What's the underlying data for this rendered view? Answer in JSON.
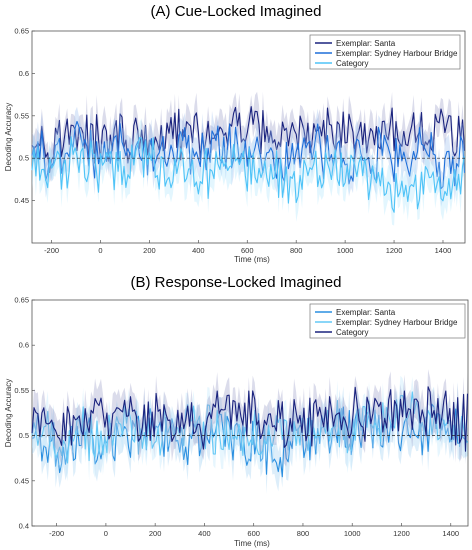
{
  "chart_data": [
    {
      "type": "line",
      "title": "(A) Cue-Locked Imagined",
      "xlabel": "Time (ms)",
      "ylabel": "Decoding Accuracy",
      "xlim": [
        -280,
        1490
      ],
      "ylim": [
        0.4,
        0.65
      ],
      "xticks": [
        -200,
        0,
        200,
        400,
        600,
        800,
        1000,
        1200,
        1400
      ],
      "yticks": [
        0.45,
        0.5,
        0.55,
        0.6,
        0.65
      ],
      "chance_level": 0.5,
      "legend_position": "top-right",
      "x": [
        -280,
        -200,
        -100,
        0,
        100,
        200,
        300,
        400,
        500,
        600,
        700,
        800,
        900,
        1000,
        1100,
        1200,
        1300,
        1400,
        1490
      ],
      "series": [
        {
          "name": "Exemplar: Santa",
          "color": "#1a237e",
          "values": [
            0.535,
            0.515,
            0.53,
            0.52,
            0.525,
            0.518,
            0.53,
            0.52,
            0.532,
            0.54,
            0.525,
            0.52,
            0.525,
            0.535,
            0.52,
            0.53,
            0.525,
            0.535,
            0.52
          ]
        },
        {
          "name": "Exemplar: Sydney Harbour Bridge",
          "color": "#1e6fd9",
          "values": [
            0.51,
            0.5,
            0.515,
            0.505,
            0.51,
            0.5,
            0.51,
            0.505,
            0.515,
            0.51,
            0.5,
            0.505,
            0.51,
            0.5,
            0.505,
            0.5,
            0.505,
            0.495,
            0.5
          ]
        },
        {
          "name": "Category",
          "color": "#4fc3f7",
          "values": [
            0.5,
            0.49,
            0.495,
            0.485,
            0.495,
            0.5,
            0.49,
            0.48,
            0.495,
            0.49,
            0.475,
            0.47,
            0.485,
            0.49,
            0.48,
            0.47,
            0.465,
            0.47,
            0.475
          ]
        }
      ]
    },
    {
      "type": "line",
      "title": "(B) Response-Locked Imagined",
      "xlabel": "Time (ms)",
      "ylabel": "Decoding Accuracy",
      "xlim": [
        -300,
        1470
      ],
      "ylim": [
        0.4,
        0.65
      ],
      "xticks": [
        -200,
        0,
        200,
        400,
        600,
        800,
        1000,
        1200,
        1400
      ],
      "yticks": [
        0.4,
        0.45,
        0.5,
        0.55,
        0.6,
        0.65
      ],
      "chance_level": 0.5,
      "legend_position": "top-right",
      "x": [
        -300,
        -200,
        -100,
        0,
        100,
        200,
        300,
        400,
        500,
        600,
        700,
        800,
        900,
        1000,
        1100,
        1200,
        1300,
        1400,
        1470
      ],
      "series": [
        {
          "name": "Exemplar: Santa",
          "color": "#2a8fe0",
          "values": [
            0.5,
            0.48,
            0.495,
            0.49,
            0.5,
            0.505,
            0.495,
            0.5,
            0.505,
            0.495,
            0.48,
            0.5,
            0.505,
            0.5,
            0.51,
            0.515,
            0.505,
            0.51,
            0.5
          ]
        },
        {
          "name": "Exemplar: Sydney Harbour Bridge",
          "color": "#64c8f5",
          "values": [
            0.51,
            0.495,
            0.505,
            0.5,
            0.51,
            0.5,
            0.505,
            0.51,
            0.505,
            0.5,
            0.495,
            0.505,
            0.51,
            0.505,
            0.52,
            0.53,
            0.515,
            0.51,
            0.505
          ]
        },
        {
          "name": "Category",
          "color": "#1a237e",
          "values": [
            0.52,
            0.51,
            0.525,
            0.515,
            0.52,
            0.515,
            0.52,
            0.515,
            0.525,
            0.52,
            0.51,
            0.515,
            0.52,
            0.525,
            0.52,
            0.53,
            0.525,
            0.52,
            0.515
          ]
        }
      ]
    }
  ]
}
